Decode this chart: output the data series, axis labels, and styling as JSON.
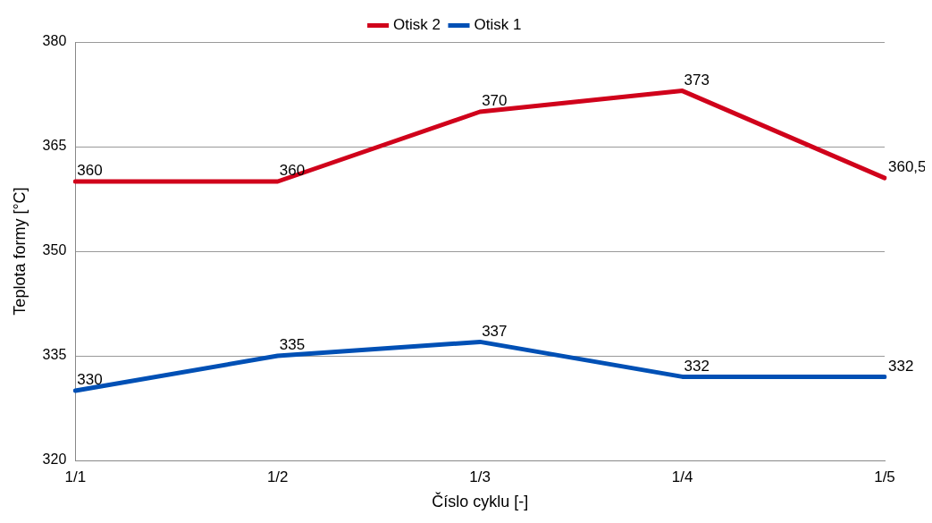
{
  "chart_data": {
    "type": "line",
    "xlabel": "Číslo cyklu [-]",
    "ylabel": "Teplota formy [°C]",
    "categories": [
      "1/1",
      "1/2",
      "1/3",
      "1/4",
      "1/5"
    ],
    "ylim": [
      320,
      380
    ],
    "yticks": [
      320,
      335,
      350,
      365,
      380
    ],
    "grid": "y",
    "legend": "top",
    "marker": "none",
    "line_style": "solid",
    "series": [
      {
        "name": "Otisk 2",
        "color": "#d0021b",
        "values": [
          360,
          360,
          370,
          373,
          360.5
        ],
        "value_labels": [
          "360",
          "360",
          "370",
          "373",
          "360,5"
        ]
      },
      {
        "name": "Otisk 1",
        "color": "#0050b5",
        "values": [
          330,
          335,
          337,
          332,
          332
        ],
        "value_labels": [
          "330",
          "335",
          "337",
          "332",
          "332"
        ]
      }
    ]
  }
}
